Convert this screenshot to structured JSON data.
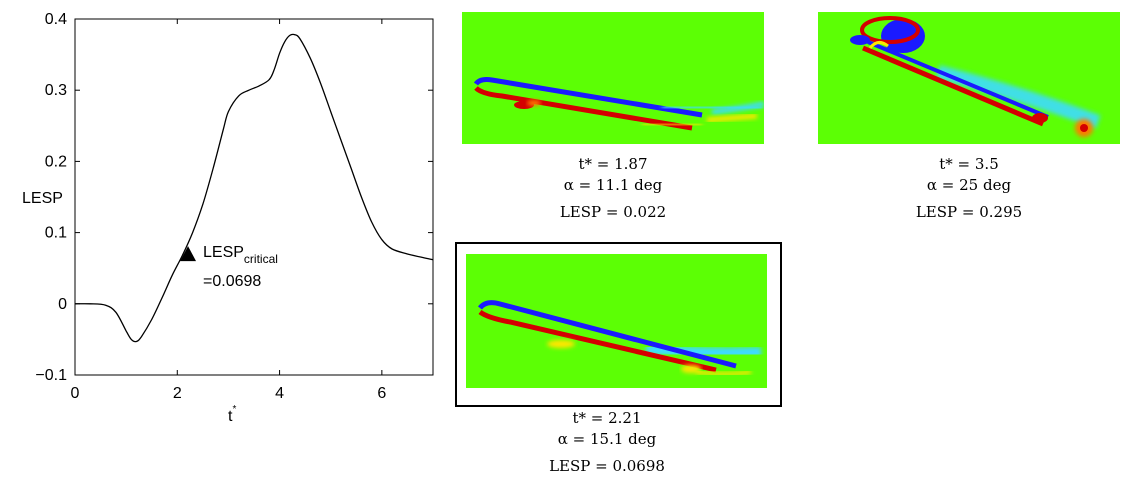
{
  "colors": {
    "flow_background": "#5cff05",
    "positive_vorticity": "#d40000",
    "negative_vorticity": "#1a1aff",
    "wake_light": "#3ddcff",
    "wake_warm": "#ffe600"
  },
  "chart_data": {
    "type": "line",
    "ylabel": "LESP",
    "xlabel": "t",
    "xlabel_superscript": "*",
    "xlim": [
      0,
      7
    ],
    "ylim": [
      -0.1,
      0.4
    ],
    "xticks": [
      0,
      2,
      4,
      6
    ],
    "xtick_labels": [
      "0",
      "2",
      "4",
      "6"
    ],
    "yticks": [
      -0.1,
      0,
      0.1,
      0.2,
      0.3,
      0.4
    ],
    "ytick_labels": [
      "−0.1",
      "0",
      "0.1",
      "0.2",
      "0.3",
      "0.4"
    ],
    "grid": false,
    "series": [
      {
        "x": [
          0,
          0.3,
          0.6,
          0.8,
          1.0,
          1.1,
          1.2,
          1.3,
          1.5,
          1.7,
          1.9,
          2.1,
          2.3,
          2.5,
          2.7,
          2.9,
          3.0,
          3.2,
          3.4,
          3.6,
          3.8,
          3.9,
          4.0,
          4.1,
          4.2,
          4.3,
          4.4,
          4.6,
          4.8,
          5.0,
          5.2,
          5.4,
          5.6,
          5.8,
          6.0,
          6.2,
          6.5,
          6.8,
          7.0
        ],
        "y": [
          0,
          0,
          -0.002,
          -0.012,
          -0.038,
          -0.05,
          -0.053,
          -0.046,
          -0.022,
          0.008,
          0.04,
          0.068,
          0.1,
          0.14,
          0.19,
          0.245,
          0.27,
          0.292,
          0.3,
          0.306,
          0.315,
          0.33,
          0.352,
          0.368,
          0.377,
          0.378,
          0.372,
          0.345,
          0.31,
          0.27,
          0.23,
          0.19,
          0.15,
          0.115,
          0.09,
          0.077,
          0.07,
          0.065,
          0.062
        ]
      }
    ],
    "marker": {
      "x": 2.21,
      "y": 0.0698,
      "shape": "triangle"
    },
    "annotation": {
      "main": "LESP",
      "subscript": "critical",
      "value_line": "=0.0698"
    }
  },
  "panels": [
    {
      "t_line": "t* = 1.87",
      "alpha_line": "α = 11.1 deg",
      "lesp_line": "LESP = 0.022",
      "highlighted": false
    },
    {
      "t_line": "t* = 3.5",
      "alpha_line": "α = 25 deg",
      "lesp_line": "LESP = 0.295",
      "highlighted": false
    },
    {
      "t_line": "t* = 2.21",
      "alpha_line": "α = 15.1 deg",
      "lesp_line": "LESP = 0.0698",
      "highlighted": true
    }
  ]
}
